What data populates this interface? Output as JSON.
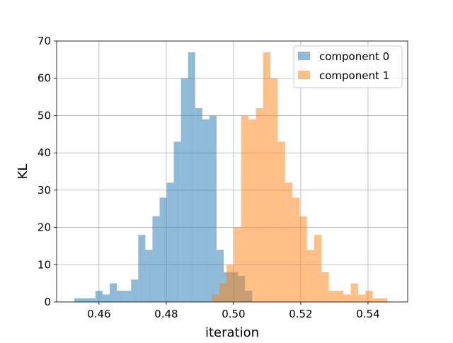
{
  "chart_data": {
    "type": "bar",
    "title": "",
    "xlabel": "iteration",
    "ylabel": "KL",
    "xlim": [
      0.4474,
      0.5518
    ],
    "ylim": [
      0,
      70
    ],
    "grid": true,
    "legend": "top-right",
    "x_ticks": [
      {
        "value": 0.46,
        "label": "0.46"
      },
      {
        "value": 0.48,
        "label": "0.48"
      },
      {
        "value": 0.5,
        "label": "0.50"
      },
      {
        "value": 0.52,
        "label": "0.52"
      },
      {
        "value": 0.54,
        "label": "0.54"
      }
    ],
    "y_ticks": [
      {
        "value": 0,
        "label": "0"
      },
      {
        "value": 10,
        "label": "10"
      },
      {
        "value": 20,
        "label": "20"
      },
      {
        "value": 30,
        "label": "30"
      },
      {
        "value": 40,
        "label": "40"
      },
      {
        "value": 50,
        "label": "50"
      },
      {
        "value": 60,
        "label": "60"
      },
      {
        "value": 70,
        "label": "70"
      }
    ],
    "series": [
      {
        "name": "component 0",
        "color": "#1f77b4",
        "opacity": 0.5,
        "bin_start": 0.4526,
        "bin_width": 0.002118,
        "counts": [
          1,
          1,
          1,
          3,
          2,
          5,
          3,
          3,
          6,
          18,
          14,
          23,
          28,
          32,
          43,
          60,
          67,
          52,
          49,
          50,
          14,
          8,
          8,
          7,
          3
        ]
      },
      {
        "name": "component 1",
        "color": "#ff7f0e",
        "opacity": 0.5,
        "bin_start": 0.4936,
        "bin_width": 0.002172,
        "counts": [
          2,
          5,
          10,
          20,
          50,
          49,
          52,
          67,
          60,
          43,
          32,
          28,
          23,
          14,
          18,
          8,
          3,
          3,
          2,
          5,
          2,
          3,
          1,
          1
        ]
      }
    ]
  }
}
